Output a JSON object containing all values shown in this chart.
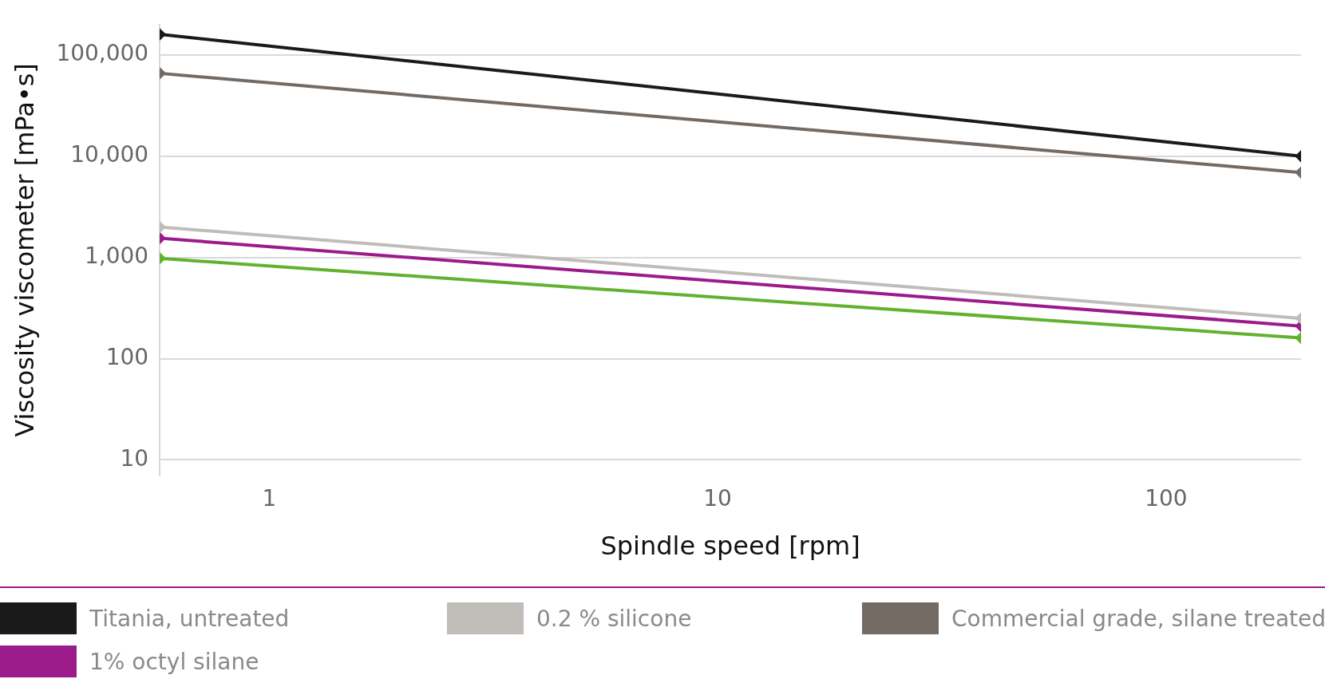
{
  "chart_data": {
    "type": "line",
    "xlabel": "Spindle speed [rpm]",
    "ylabel": "Viscosity viscometer [mPa•s]",
    "x": [
      0.57,
      200
    ],
    "series": [
      {
        "name": "Titania, untreated",
        "color": "#1a1a1a",
        "values": [
          160000,
          10000
        ]
      },
      {
        "name": "0.2 % silicone",
        "color": "#c0bcb8",
        "values": [
          2000,
          250
        ]
      },
      {
        "name": "Commercial grade, silane treated",
        "color": "#736a64",
        "values": [
          66000,
          6900
        ]
      },
      {
        "name": "1% octyl silane",
        "color": "#9b1b8a",
        "values": [
          1550,
          210
        ]
      },
      {
        "color": "#62b22f",
        "values": [
          980,
          160
        ]
      }
    ],
    "log": "xy",
    "xlim": [
      0.57,
      200
    ],
    "xticks": [
      1,
      10,
      100
    ],
    "ylim": [
      7,
      200000
    ],
    "yticks": [
      10,
      100,
      {
        "value": 1000,
        "label": "1,000"
      },
      {
        "value": 10000,
        "label": "10,000"
      },
      {
        "value": 100000,
        "label": "100,000"
      }
    ],
    "grid": "y",
    "legend": "bottom",
    "marker": "diamond",
    "line_style": "solid"
  }
}
